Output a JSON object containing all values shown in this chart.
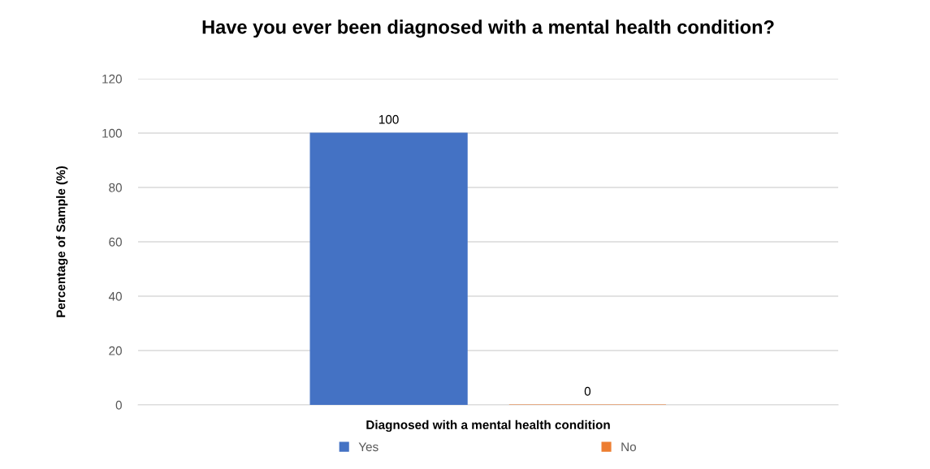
{
  "chart_data": {
    "type": "bar",
    "title": "Have you ever been diagnosed with a mental health condition?",
    "xlabel": "Diagnosed with a mental health condition",
    "ylabel": "Percentage of Sample (%)",
    "categories": [
      null
    ],
    "series": [
      {
        "name": "Yes",
        "color": "#4472c4",
        "values": [
          100
        ]
      },
      {
        "name": "No",
        "color": "#ed7d31",
        "values": [
          0
        ]
      }
    ],
    "ylim": [
      0,
      120
    ],
    "yticks": [
      0,
      20,
      40,
      60,
      80,
      100,
      120
    ],
    "grid": "y",
    "legend": "bottom",
    "data_labels": true
  }
}
